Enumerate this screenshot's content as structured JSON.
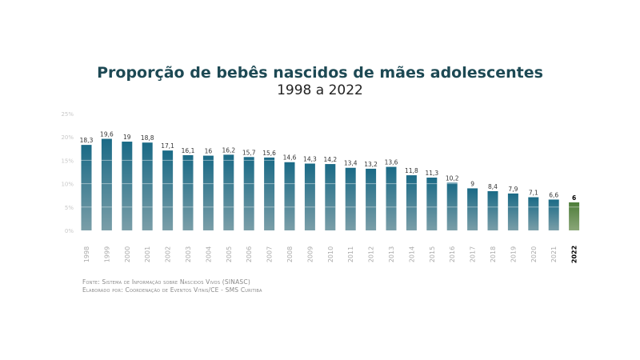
{
  "chart_data": {
    "type": "bar",
    "title": "Proporção de bebês nascidos de mães adolescentes",
    "subtitle": "1998 a 2022",
    "categories": [
      "1998",
      "1999",
      "2000",
      "2001",
      "2002",
      "2003",
      "2004",
      "2005",
      "2006",
      "2007",
      "2008",
      "2009",
      "2010",
      "2011",
      "2012",
      "2013",
      "2014",
      "2015",
      "2016",
      "2017",
      "2018",
      "2019",
      "2020",
      "2021",
      "2022"
    ],
    "values": [
      18.3,
      19.6,
      19,
      18.8,
      17.1,
      16.1,
      16,
      16.2,
      15.7,
      15.6,
      14.6,
      14.3,
      14.2,
      13.4,
      13.2,
      13.6,
      11.8,
      11.3,
      10.2,
      9,
      8.4,
      7.9,
      7.1,
      6.6,
      6
    ],
    "data_labels": [
      "18,3",
      "19,6",
      "19",
      "18,8",
      "17,1",
      "16,1",
      "16",
      "16,2",
      "15,7",
      "15,6",
      "14,6",
      "14,3",
      "14,2",
      "13,4",
      "13,2",
      "13,6",
      "11,8",
      "11,3",
      "10,2",
      "9",
      "8,4",
      "7,9",
      "7,1",
      "6,6",
      "6"
    ],
    "yticks": [
      "0%",
      "5%",
      "10%",
      "15%",
      "20%",
      "25%"
    ],
    "ylim": [
      0,
      25
    ],
    "highlight_category": "2022",
    "colors": {
      "bar_top": "#1a6a86",
      "bar_bottom": "#7a9ea8",
      "highlight_top": "#4e7d3a",
      "highlight_bottom": "#8aa678",
      "title": "#1d4954"
    },
    "grid": "white lines across bars every 5%"
  },
  "source": {
    "line1": "Fonte: Sistema de Informação sobre Nascidos Vivos (SINASC)",
    "line2": "Elaborado por: Coordenação de Eventos Vitais/CE - SMS Curitiba"
  }
}
